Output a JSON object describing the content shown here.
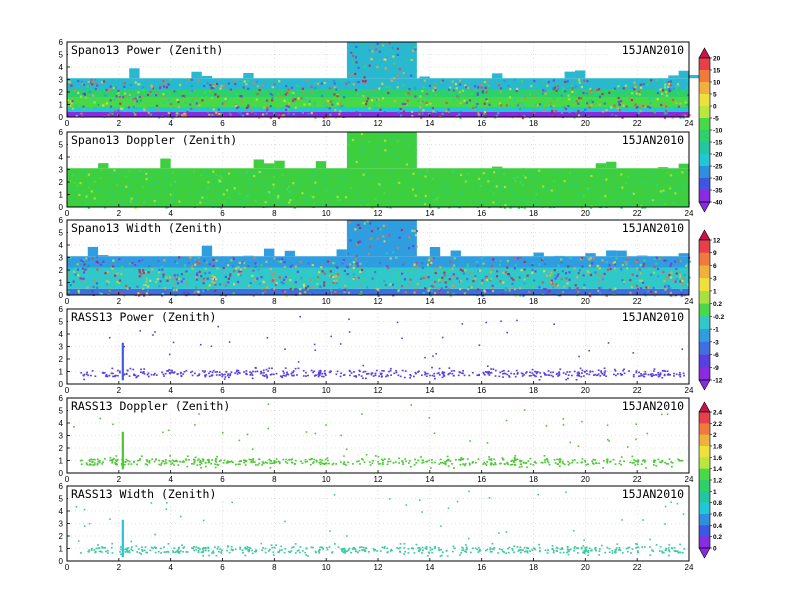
{
  "figure": {
    "date_label": "15JAN2010"
  },
  "chart_data": [
    {
      "type": "heatmap",
      "title": "Spano13 Power (Zenith)",
      "date": "15JAN2010",
      "x_ticks": [
        0,
        2,
        4,
        6,
        8,
        10,
        12,
        14,
        16,
        18,
        20,
        22,
        24
      ],
      "y_ticks": [
        0,
        1,
        2,
        3,
        4,
        5,
        6
      ],
      "xlim": [
        0,
        24
      ],
      "ylim": [
        0,
        6
      ],
      "grid": true,
      "colorbar": {
        "labels": [
          "20",
          "15",
          "10",
          "5",
          "0",
          "-5",
          "-10",
          "-15",
          "-20",
          "-25",
          "-30",
          "-35",
          "-40"
        ],
        "shared_with": "Spano13 Doppler (Zenith)"
      },
      "data_extent": {
        "base_top_km": 3.1,
        "burst_hours": [
          10.8,
          13.5
        ],
        "burst_top_km": 6
      },
      "layers": [
        {
          "y_range": [
            0.0,
            0.4
          ],
          "value": "-40",
          "color": "#8a2be2"
        },
        {
          "y_range": [
            0.4,
            0.8
          ],
          "value": "-20",
          "color": "#22c7d6"
        },
        {
          "y_range": [
            0.8,
            1.6
          ],
          "value": "-10",
          "color": "#48d948"
        },
        {
          "y_range": [
            1.6,
            2.2
          ],
          "value": "-15",
          "color": "#2ed06a"
        },
        {
          "y_range": [
            2.2,
            3.1
          ],
          "value": "-25",
          "color": "#2ab8d0"
        }
      ]
    },
    {
      "type": "heatmap",
      "title": "Spano13 Doppler (Zenith)",
      "date": "15JAN2010",
      "x_ticks": [
        0,
        2,
        4,
        6,
        8,
        10,
        12,
        14,
        16,
        18,
        20,
        22,
        24
      ],
      "y_ticks": [
        0,
        1,
        2,
        3,
        4,
        5,
        6
      ],
      "xlim": [
        0,
        24
      ],
      "ylim": [
        0,
        6
      ],
      "grid": true,
      "data_extent": {
        "base_top_km": 3.1,
        "burst_hours": [
          10.8,
          13.5
        ],
        "burst_top_km": 6
      },
      "layers": [
        {
          "y_range": [
            0.0,
            3.1
          ],
          "value": "-15",
          "color": "#3ecf3e"
        }
      ]
    },
    {
      "type": "heatmap",
      "title": "Spano13 Width (Zenith)",
      "date": "15JAN2010",
      "x_ticks": [
        0,
        2,
        4,
        6,
        8,
        10,
        12,
        14,
        16,
        18,
        20,
        22,
        24
      ],
      "y_ticks": [
        0,
        1,
        2,
        3,
        4,
        5,
        6
      ],
      "xlim": [
        0,
        24
      ],
      "ylim": [
        0,
        6
      ],
      "grid": true,
      "colorbar": {
        "labels": [
          "12",
          "9",
          "6",
          "3",
          "1",
          "0.2",
          "-0.2",
          "-1",
          "-3",
          "-6",
          "-9",
          "-12"
        ],
        "shared_with": "RASS13 Power (Zenith)"
      },
      "data_extent": {
        "base_top_km": 3.1,
        "burst_hours": [
          10.8,
          13.5
        ],
        "burst_top_km": 6
      },
      "layers": [
        {
          "y_range": [
            0.0,
            0.5
          ],
          "value": "-6",
          "color": "#3f6fe0"
        },
        {
          "y_range": [
            0.5,
            2.2
          ],
          "value": "-1",
          "color": "#30c8c8"
        },
        {
          "y_range": [
            2.2,
            3.1
          ],
          "value": "-3",
          "color": "#2f9ee0"
        }
      ]
    },
    {
      "type": "scatter",
      "title": "RASS13 Power (Zenith)",
      "date": "15JAN2010",
      "x_ticks": [
        0,
        2,
        4,
        6,
        8,
        10,
        12,
        14,
        16,
        18,
        20,
        22,
        24
      ],
      "y_ticks": [
        0,
        1,
        2,
        3,
        4,
        5,
        6
      ],
      "xlim": [
        0,
        24
      ],
      "ylim": [
        0,
        6
      ],
      "grid": true,
      "band": {
        "x_range": [
          0.5,
          23.8
        ],
        "y_center": 0.9,
        "spread": 0.25,
        "color": "#5a3fe0"
      },
      "spike": {
        "x": 2.15,
        "y_range": [
          0.3,
          3.3
        ],
        "color": "#3f5fe0"
      }
    },
    {
      "type": "scatter",
      "title": "RASS13 Doppler (Zenith)",
      "date": "15JAN2010",
      "x_ticks": [
        0,
        2,
        4,
        6,
        8,
        10,
        12,
        14,
        16,
        18,
        20,
        22,
        24
      ],
      "y_ticks": [
        0,
        1,
        2,
        3,
        4,
        5,
        6
      ],
      "xlim": [
        0,
        24
      ],
      "ylim": [
        0,
        6
      ],
      "grid": true,
      "colorbar": {
        "labels": [
          "2.4",
          "2.2",
          "2",
          "1.8",
          "1.6",
          "1.4",
          "1.2",
          "1",
          "0.8",
          "0.6",
          "0.4",
          "0.2",
          "0"
        ],
        "shared_with": "RASS13 Width (Zenith)"
      },
      "band": {
        "x_range": [
          0.5,
          23.8
        ],
        "y_center": 0.95,
        "spread": 0.25,
        "color": "#4ac832"
      },
      "spike": {
        "x": 2.15,
        "y_range": [
          0.3,
          3.3
        ],
        "color": "#4ac832"
      }
    },
    {
      "type": "scatter",
      "title": "RASS13 Width (Zenith)",
      "date": "15JAN2010",
      "x_ticks": [
        0,
        2,
        4,
        6,
        8,
        10,
        12,
        14,
        16,
        18,
        20,
        22,
        24
      ],
      "y_ticks": [
        0,
        1,
        2,
        3,
        4,
        5,
        6
      ],
      "xlim": [
        0,
        24
      ],
      "ylim": [
        0,
        6
      ],
      "grid": true,
      "band": {
        "x_range": [
          0.5,
          23.8
        ],
        "y_center": 0.95,
        "spread": 0.25,
        "color": "#3cc8a0"
      },
      "spike": {
        "x": 2.15,
        "y_range": [
          0.3,
          3.3
        ],
        "color": "#22c7d6"
      }
    }
  ],
  "palettes": {
    "power": [
      "#c8144a",
      "#e8404a",
      "#f07a3c",
      "#f0b03c",
      "#f0e03c",
      "#b8e83c",
      "#48d948",
      "#2ed06a",
      "#22c7a0",
      "#22c7d6",
      "#2e8ee0",
      "#3f56e0",
      "#8a2be2"
    ],
    "width": [
      "#c8144a",
      "#e8404a",
      "#f07a3c",
      "#f0b03c",
      "#f0e03c",
      "#a8e040",
      "#48d948",
      "#30c8c8",
      "#2f9ee0",
      "#3f6fe0",
      "#5a3fe0",
      "#8a2be2"
    ],
    "rass": [
      "#c8144a",
      "#e8404a",
      "#f07a3c",
      "#f0b03c",
      "#f0e03c",
      "#b8e83c",
      "#48d948",
      "#2ed06a",
      "#22c7a0",
      "#22c7d6",
      "#2e8ee0",
      "#3f56e0",
      "#8a2be2"
    ]
  }
}
